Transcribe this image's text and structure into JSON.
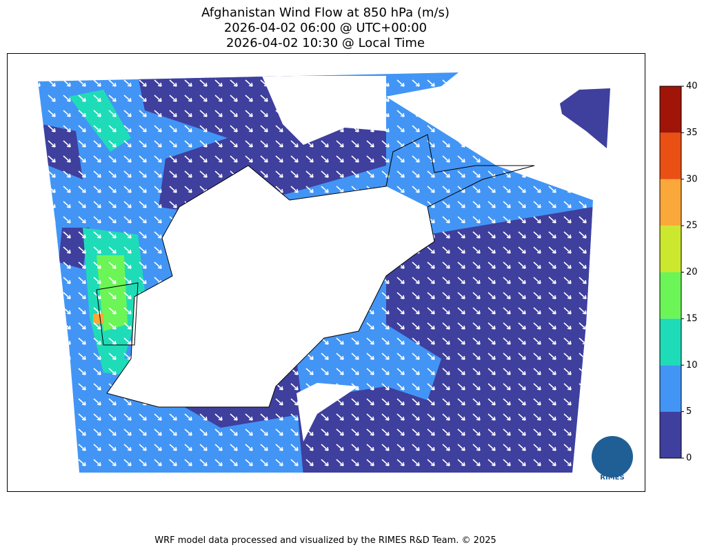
{
  "title": [
    "Afghanistan Wind Flow at 850 hPa (m/s)",
    "2026-04-02 06:00 @ UTC+00:00",
    "2026-04-02 10:30 @ Local Time"
  ],
  "colorbar": {
    "lim": [
      0,
      40
    ],
    "ticks": [
      0,
      5,
      10,
      15,
      20,
      25,
      30,
      35,
      40
    ],
    "colors": [
      "#3f3f9e",
      "#4295f5",
      "#1fdcb8",
      "#6cf556",
      "#cce82e",
      "#fba83a",
      "#ea5013",
      "#a01507"
    ]
  },
  "logo": "RIMES",
  "footer": "WRF model data processed and visualized by the RIMES R&D Team. © 2025"
}
